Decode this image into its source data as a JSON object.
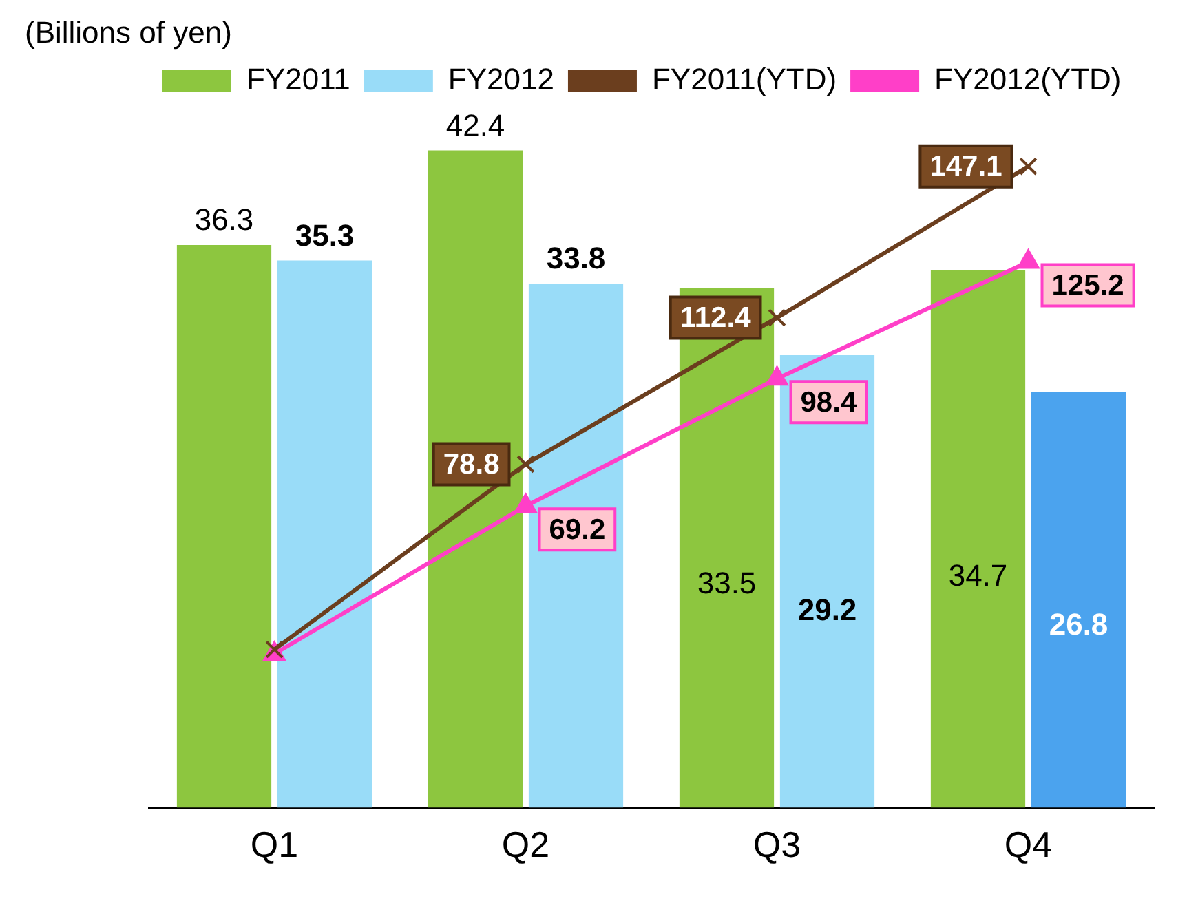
{
  "chart_data": {
    "type": "bar",
    "ylabel": "(Billions of yen)",
    "categories": [
      "Q1",
      "Q2",
      "Q3",
      "Q4"
    ],
    "series": [
      {
        "name": "FY2011",
        "color": "#8dc63f",
        "values": [
          36.3,
          42.4,
          33.5,
          34.7
        ],
        "value_labels": [
          "36.3",
          "42.4",
          "33.5",
          "34.7"
        ]
      },
      {
        "name": "FY2012",
        "color": "#99dcf8",
        "colors": [
          "#99dcf8",
          "#99dcf8",
          "#99dcf8",
          "#4ba3ee"
        ],
        "values": [
          35.3,
          33.8,
          29.2,
          26.8
        ],
        "value_labels": [
          "35.3",
          "33.8",
          "29.2",
          "26.8"
        ]
      },
      {
        "name": "FY2011(YTD)",
        "type": "line",
        "axis": "y2",
        "marker": "cross",
        "color": "#6b3e1e",
        "values": [
          36.3,
          78.8,
          112.4,
          147.1
        ],
        "value_labels": [
          null,
          "78.8",
          "112.4",
          "147.1"
        ]
      },
      {
        "name": "FY2012(YTD)",
        "type": "line",
        "axis": "y2",
        "marker": "triangle",
        "color": "#ff3fc8",
        "values": [
          35.3,
          69.2,
          98.4,
          125.2
        ],
        "value_labels": [
          null,
          "69.2",
          "98.4",
          "125.2"
        ]
      }
    ],
    "legend": "top left",
    "grid": false
  }
}
